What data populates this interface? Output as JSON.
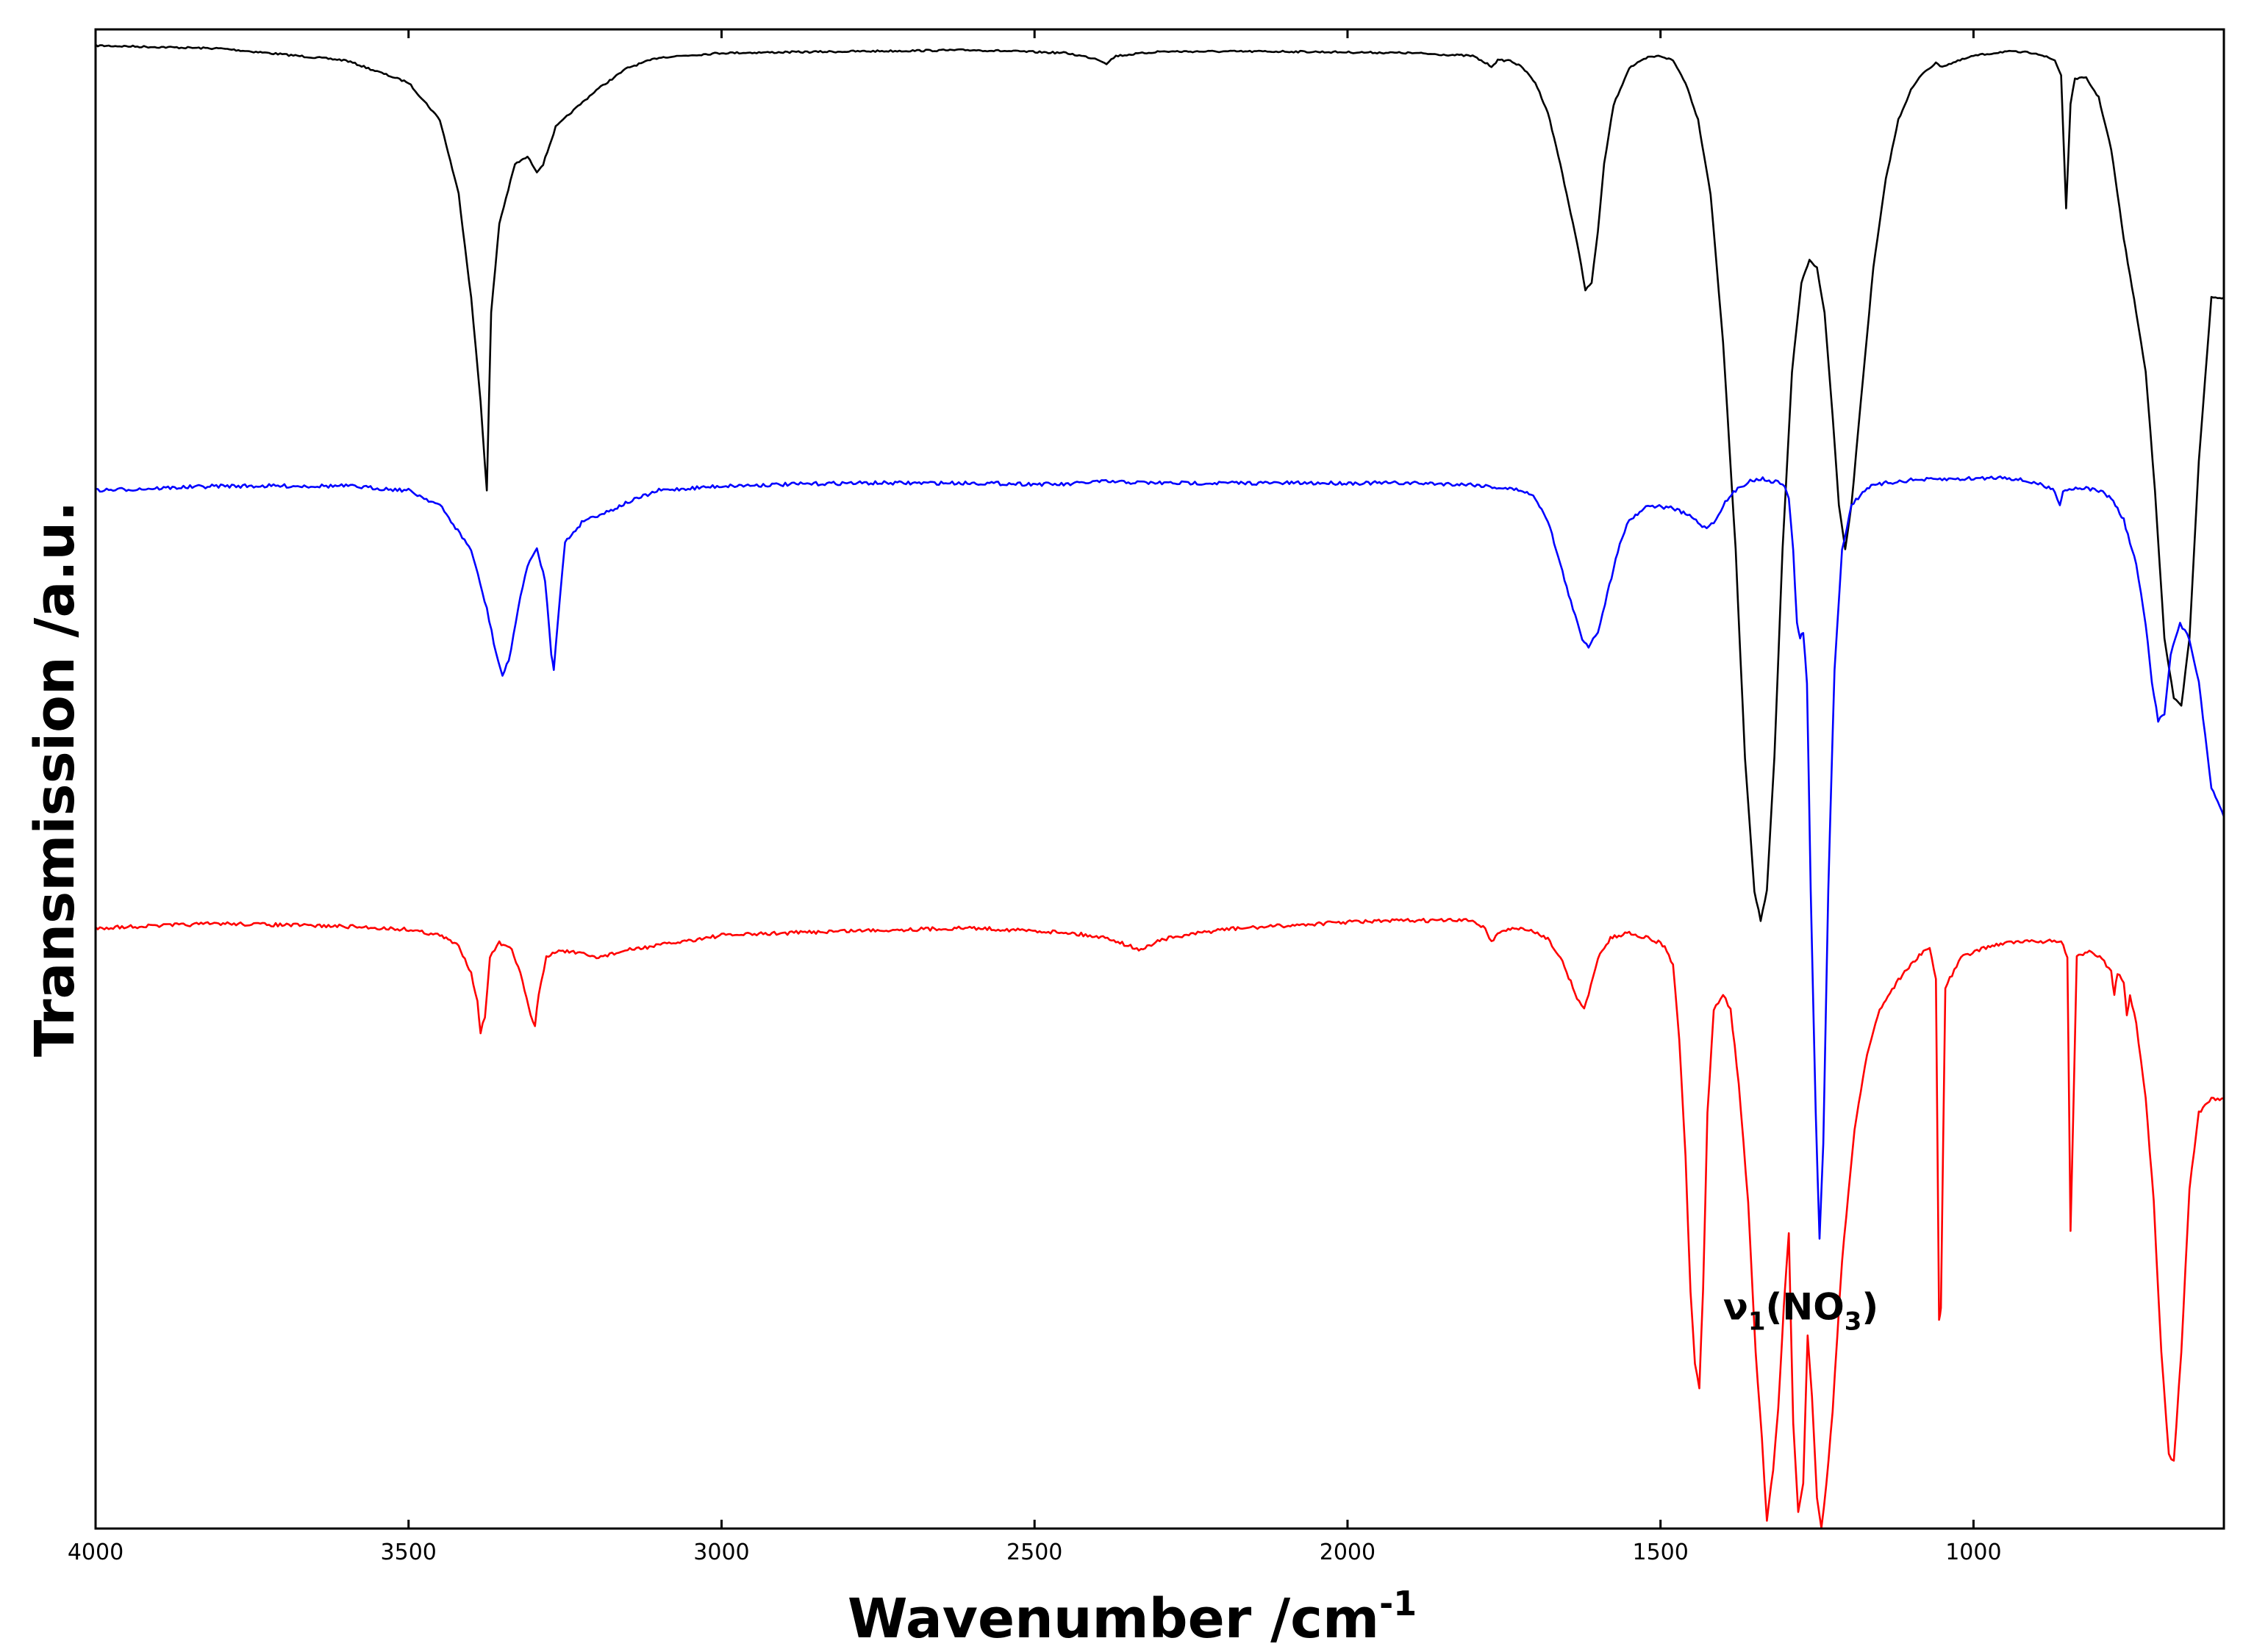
{
  "chart_data": {
    "type": "line",
    "xlabel": "Wavenumber /cm",
    "xlabel_superscript": "-1",
    "ylabel": "Transmission /a.u.",
    "xlim": [
      4000,
      600
    ],
    "x_reversed": true,
    "x_ticks": [
      4000,
      3500,
      3000,
      2500,
      2000,
      1500,
      1000
    ],
    "y_ticks_shown": false,
    "grid": false,
    "legend": "none",
    "annotation": {
      "text_main": "ν",
      "text_sub1": "1",
      "text_mid": "(NO",
      "text_sub2": "3",
      "text_end": ")",
      "x": 1400,
      "y": 0.15
    },
    "series": [
      {
        "color": "#000000",
        "points": [
          [
            4000,
            1.0
          ],
          [
            3800,
            0.998
          ],
          [
            3600,
            0.99
          ],
          [
            3500,
            0.975
          ],
          [
            3450,
            0.95
          ],
          [
            3420,
            0.9
          ],
          [
            3400,
            0.83
          ],
          [
            3385,
            0.76
          ],
          [
            3375,
            0.7
          ],
          [
            3368,
            0.82
          ],
          [
            3355,
            0.88
          ],
          [
            3330,
            0.92
          ],
          [
            3310,
            0.925
          ],
          [
            3295,
            0.915
          ],
          [
            3285,
            0.92
          ],
          [
            3265,
            0.945
          ],
          [
            3240,
            0.955
          ],
          [
            3200,
            0.97
          ],
          [
            3150,
            0.985
          ],
          [
            3100,
            0.992
          ],
          [
            3000,
            0.995
          ],
          [
            2800,
            0.996
          ],
          [
            2600,
            0.997
          ],
          [
            2450,
            0.995
          ],
          [
            2400,
            0.991
          ],
          [
            2385,
            0.988
          ],
          [
            2370,
            0.993
          ],
          [
            2300,
            0.996
          ],
          [
            2100,
            0.996
          ],
          [
            1900,
            0.995
          ],
          [
            1800,
            0.993
          ],
          [
            1770,
            0.986
          ],
          [
            1760,
            0.99
          ],
          [
            1740,
            0.99
          ],
          [
            1720,
            0.985
          ],
          [
            1700,
            0.975
          ],
          [
            1680,
            0.955
          ],
          [
            1660,
            0.92
          ],
          [
            1640,
            0.88
          ],
          [
            1630,
            0.86
          ],
          [
            1620,
            0.835
          ],
          [
            1610,
            0.84
          ],
          [
            1600,
            0.875
          ],
          [
            1590,
            0.92
          ],
          [
            1575,
            0.96
          ],
          [
            1550,
            0.985
          ],
          [
            1520,
            0.992
          ],
          [
            1500,
            0.993
          ],
          [
            1480,
            0.99
          ],
          [
            1460,
            0.975
          ],
          [
            1440,
            0.95
          ],
          [
            1420,
            0.9
          ],
          [
            1400,
            0.8
          ],
          [
            1380,
            0.66
          ],
          [
            1365,
            0.52
          ],
          [
            1350,
            0.43
          ],
          [
            1340,
            0.41
          ],
          [
            1330,
            0.43
          ],
          [
            1318,
            0.52
          ],
          [
            1305,
            0.66
          ],
          [
            1290,
            0.78
          ],
          [
            1275,
            0.84
          ],
          [
            1262,
            0.855
          ],
          [
            1250,
            0.85
          ],
          [
            1238,
            0.82
          ],
          [
            1225,
            0.75
          ],
          [
            1215,
            0.69
          ],
          [
            1205,
            0.66
          ],
          [
            1195,
            0.69
          ],
          [
            1180,
            0.76
          ],
          [
            1160,
            0.85
          ],
          [
            1140,
            0.91
          ],
          [
            1120,
            0.95
          ],
          [
            1100,
            0.97
          ],
          [
            1080,
            0.982
          ],
          [
            1060,
            0.988
          ],
          [
            1050,
            0.986
          ],
          [
            1000,
            0.993
          ],
          [
            950,
            0.996
          ],
          [
            900,
            0.995
          ],
          [
            870,
            0.99
          ],
          [
            860,
            0.98
          ],
          [
            852,
            0.89
          ],
          [
            845,
            0.96
          ],
          [
            838,
            0.978
          ],
          [
            820,
            0.978
          ],
          [
            800,
            0.965
          ],
          [
            780,
            0.93
          ],
          [
            760,
            0.87
          ],
          [
            740,
            0.82
          ],
          [
            725,
            0.78
          ],
          [
            710,
            0.7
          ],
          [
            695,
            0.6
          ],
          [
            680,
            0.56
          ],
          [
            668,
            0.555
          ],
          [
            655,
            0.6
          ],
          [
            640,
            0.72
          ],
          [
            620,
            0.83
          ],
          [
            600,
            0.83
          ]
        ]
      },
      {
        "color": "#0000ff",
        "points": [
          [
            4000,
            0.7
          ],
          [
            3800,
            0.703
          ],
          [
            3600,
            0.703
          ],
          [
            3500,
            0.7
          ],
          [
            3450,
            0.69
          ],
          [
            3400,
            0.66
          ],
          [
            3375,
            0.62
          ],
          [
            3360,
            0.59
          ],
          [
            3350,
            0.575
          ],
          [
            3340,
            0.585
          ],
          [
            3325,
            0.62
          ],
          [
            3310,
            0.65
          ],
          [
            3295,
            0.66
          ],
          [
            3282,
            0.64
          ],
          [
            3272,
            0.59
          ],
          [
            3268,
            0.58
          ],
          [
            3262,
            0.61
          ],
          [
            3250,
            0.665
          ],
          [
            3220,
            0.68
          ],
          [
            3180,
            0.686
          ],
          [
            3150,
            0.692
          ],
          [
            3100,
            0.7
          ],
          [
            3000,
            0.703
          ],
          [
            2800,
            0.705
          ],
          [
            2600,
            0.705
          ],
          [
            2450,
            0.704
          ],
          [
            2400,
            0.706
          ],
          [
            2300,
            0.705
          ],
          [
            2100,
            0.705
          ],
          [
            1900,
            0.705
          ],
          [
            1800,
            0.704
          ],
          [
            1720,
            0.7
          ],
          [
            1700,
            0.695
          ],
          [
            1680,
            0.68
          ],
          [
            1660,
            0.65
          ],
          [
            1640,
            0.62
          ],
          [
            1625,
            0.6
          ],
          [
            1615,
            0.595
          ],
          [
            1600,
            0.605
          ],
          [
            1585,
            0.63
          ],
          [
            1565,
            0.665
          ],
          [
            1550,
            0.68
          ],
          [
            1520,
            0.69
          ],
          [
            1480,
            0.688
          ],
          [
            1450,
            0.682
          ],
          [
            1430,
            0.675
          ],
          [
            1415,
            0.678
          ],
          [
            1400,
            0.69
          ],
          [
            1380,
            0.7
          ],
          [
            1360,
            0.706
          ],
          [
            1340,
            0.708
          ],
          [
            1320,
            0.706
          ],
          [
            1305,
            0.705
          ],
          [
            1295,
            0.695
          ],
          [
            1288,
            0.66
          ],
          [
            1282,
            0.61
          ],
          [
            1277,
            0.6
          ],
          [
            1272,
            0.605
          ],
          [
            1266,
            0.57
          ],
          [
            1260,
            0.43
          ],
          [
            1252,
            0.28
          ],
          [
            1246,
            0.195
          ],
          [
            1240,
            0.26
          ],
          [
            1232,
            0.43
          ],
          [
            1222,
            0.58
          ],
          [
            1210,
            0.66
          ],
          [
            1195,
            0.69
          ],
          [
            1170,
            0.702
          ],
          [
            1140,
            0.705
          ],
          [
            1100,
            0.707
          ],
          [
            1000,
            0.708
          ],
          [
            950,
            0.709
          ],
          [
            900,
            0.705
          ],
          [
            870,
            0.7
          ],
          [
            862,
            0.69
          ],
          [
            857,
            0.7
          ],
          [
            830,
            0.702
          ],
          [
            800,
            0.7
          ],
          [
            780,
            0.695
          ],
          [
            760,
            0.68
          ],
          [
            740,
            0.65
          ],
          [
            725,
            0.61
          ],
          [
            715,
            0.57
          ],
          [
            705,
            0.545
          ],
          [
            695,
            0.55
          ],
          [
            685,
            0.59
          ],
          [
            670,
            0.61
          ],
          [
            655,
            0.6
          ],
          [
            640,
            0.57
          ],
          [
            620,
            0.5
          ],
          [
            600,
            0.48
          ]
        ]
      },
      {
        "color": "#ff0000",
        "points": [
          [
            4000,
            0.405
          ],
          [
            3800,
            0.408
          ],
          [
            3600,
            0.406
          ],
          [
            3500,
            0.404
          ],
          [
            3450,
            0.4
          ],
          [
            3420,
            0.393
          ],
          [
            3400,
            0.375
          ],
          [
            3390,
            0.355
          ],
          [
            3385,
            0.335
          ],
          [
            3378,
            0.345
          ],
          [
            3370,
            0.385
          ],
          [
            3355,
            0.395
          ],
          [
            3335,
            0.39
          ],
          [
            3318,
            0.37
          ],
          [
            3305,
            0.345
          ],
          [
            3298,
            0.34
          ],
          [
            3292,
            0.36
          ],
          [
            3280,
            0.385
          ],
          [
            3260,
            0.39
          ],
          [
            3230,
            0.388
          ],
          [
            3200,
            0.385
          ],
          [
            3150,
            0.39
          ],
          [
            3000,
            0.4
          ],
          [
            2800,
            0.403
          ],
          [
            2600,
            0.405
          ],
          [
            2450,
            0.402
          ],
          [
            2380,
            0.398
          ],
          [
            2350,
            0.393
          ],
          [
            2330,
            0.39
          ],
          [
            2300,
            0.397
          ],
          [
            2200,
            0.404
          ],
          [
            2000,
            0.409
          ],
          [
            1900,
            0.41
          ],
          [
            1800,
            0.41
          ],
          [
            1780,
            0.405
          ],
          [
            1770,
            0.395
          ],
          [
            1760,
            0.402
          ],
          [
            1730,
            0.405
          ],
          [
            1700,
            0.402
          ],
          [
            1680,
            0.398
          ],
          [
            1660,
            0.385
          ],
          [
            1640,
            0.365
          ],
          [
            1630,
            0.355
          ],
          [
            1622,
            0.35
          ],
          [
            1615,
            0.36
          ],
          [
            1600,
            0.385
          ],
          [
            1580,
            0.398
          ],
          [
            1550,
            0.402
          ],
          [
            1520,
            0.398
          ],
          [
            1500,
            0.395
          ],
          [
            1490,
            0.39
          ],
          [
            1480,
            0.38
          ],
          [
            1470,
            0.33
          ],
          [
            1460,
            0.25
          ],
          [
            1452,
            0.16
          ],
          [
            1445,
            0.11
          ],
          [
            1438,
            0.095
          ],
          [
            1432,
            0.16
          ],
          [
            1425,
            0.28
          ],
          [
            1415,
            0.35
          ],
          [
            1400,
            0.36
          ],
          [
            1388,
            0.35
          ],
          [
            1375,
            0.3
          ],
          [
            1360,
            0.22
          ],
          [
            1348,
            0.12
          ],
          [
            1338,
            0.06
          ],
          [
            1330,
            0.005
          ],
          [
            1320,
            0.04
          ],
          [
            1312,
            0.08
          ],
          [
            1303,
            0.15
          ],
          [
            1295,
            0.2
          ],
          [
            1288,
            0.07
          ],
          [
            1280,
            0.01
          ],
          [
            1272,
            0.03
          ],
          [
            1265,
            0.13
          ],
          [
            1258,
            0.09
          ],
          [
            1250,
            0.02
          ],
          [
            1243,
            0.0
          ],
          [
            1235,
            0.03
          ],
          [
            1225,
            0.08
          ],
          [
            1210,
            0.18
          ],
          [
            1190,
            0.27
          ],
          [
            1170,
            0.32
          ],
          [
            1150,
            0.35
          ],
          [
            1120,
            0.37
          ],
          [
            1090,
            0.385
          ],
          [
            1070,
            0.392
          ],
          [
            1060,
            0.37
          ],
          [
            1055,
            0.14
          ],
          [
            1052,
            0.15
          ],
          [
            1045,
            0.365
          ],
          [
            1020,
            0.385
          ],
          [
            980,
            0.392
          ],
          [
            950,
            0.395
          ],
          [
            900,
            0.396
          ],
          [
            860,
            0.396
          ],
          [
            850,
            0.385
          ],
          [
            845,
            0.2
          ],
          [
            840,
            0.29
          ],
          [
            835,
            0.385
          ],
          [
            815,
            0.39
          ],
          [
            795,
            0.385
          ],
          [
            780,
            0.375
          ],
          [
            775,
            0.36
          ],
          [
            770,
            0.375
          ],
          [
            760,
            0.368
          ],
          [
            755,
            0.345
          ],
          [
            750,
            0.36
          ],
          [
            740,
            0.34
          ],
          [
            725,
            0.29
          ],
          [
            712,
            0.22
          ],
          [
            700,
            0.12
          ],
          [
            688,
            0.05
          ],
          [
            680,
            0.045
          ],
          [
            668,
            0.12
          ],
          [
            655,
            0.23
          ],
          [
            640,
            0.28
          ],
          [
            620,
            0.29
          ],
          [
            600,
            0.29
          ]
        ]
      }
    ]
  }
}
